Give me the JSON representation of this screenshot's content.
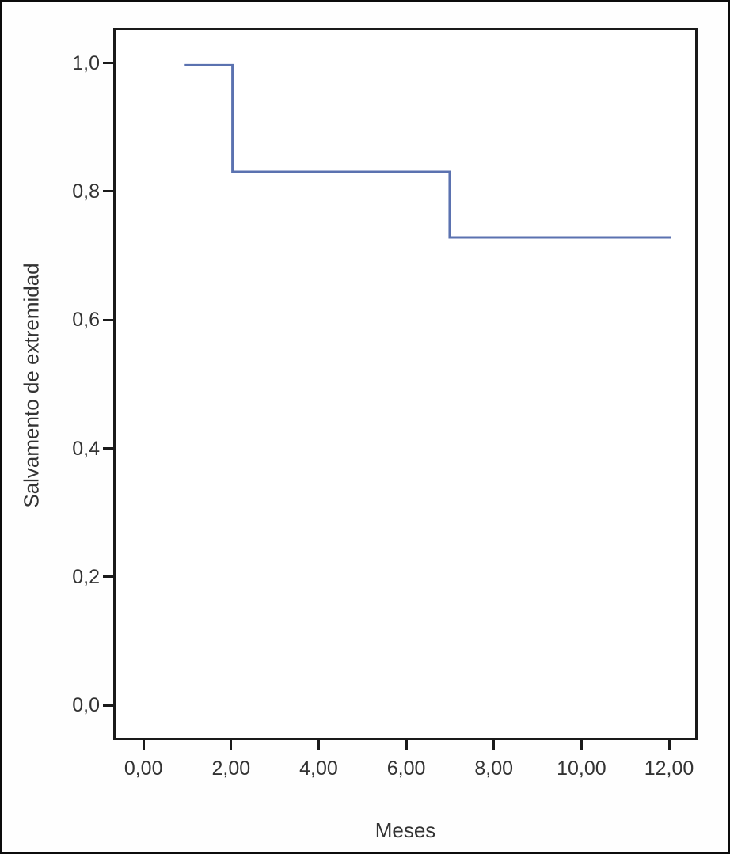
{
  "chart_data": {
    "type": "line",
    "subtype": "kaplan-meier-step",
    "title": "",
    "xlabel": "Meses",
    "ylabel": "Salvamento de extremidad",
    "x_tick_labels": [
      "0,00",
      "2,00",
      "4,00",
      "6,00",
      "8,00",
      "10,00",
      "12,00"
    ],
    "x_tick_values": [
      0,
      2,
      4,
      6,
      8,
      10,
      12
    ],
    "y_tick_labels": [
      "0,0",
      "0,2",
      "0,4",
      "0,6",
      "0,8",
      "1,0"
    ],
    "y_tick_values": [
      0,
      0.2,
      0.4,
      0.6,
      0.8,
      1.0
    ],
    "xlim": [
      -0.69,
      12.65
    ],
    "ylim": [
      -0.054,
      1.055
    ],
    "grid": false,
    "legend": false,
    "axis_color": "#1a1a1a",
    "text_color": "#333333",
    "series": [
      {
        "name": "Salvamento de extremidad",
        "color": "#5b72b0",
        "line_width": 3,
        "points": [
          [
            0.9,
            1.0
          ],
          [
            2.0,
            1.0
          ],
          [
            2.0,
            0.833
          ],
          [
            7.0,
            0.833
          ],
          [
            7.0,
            0.73
          ],
          [
            12.1,
            0.73
          ]
        ]
      }
    ]
  }
}
